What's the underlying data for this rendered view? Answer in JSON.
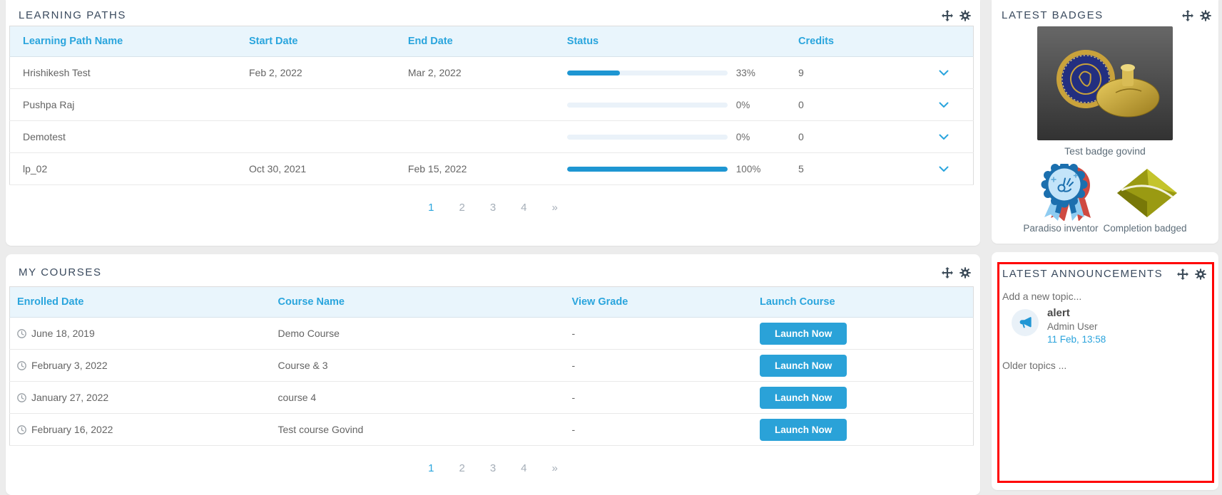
{
  "colors": {
    "accent_blue": "#2aa5dd",
    "progress_fill": "#1e96d2",
    "title_navy": "#3a4a5e",
    "alert_border_red": "#ff0000",
    "table_header_bg": "#e9f5fc",
    "page_bg": "#ececec"
  },
  "icons": {
    "panel_actions": [
      "move-icon",
      "gear-icon"
    ],
    "row_expand": "chevron-down-icon",
    "enrolled": "clock-icon",
    "announcement": "megaphone-icon"
  },
  "learning_paths": {
    "title": "LEARNING PATHS",
    "columns": [
      "Learning Path Name",
      "Start Date",
      "End Date",
      "Status",
      "Credits"
    ],
    "rows": [
      {
        "name": "Hrishikesh Test",
        "start": "Feb 2, 2022",
        "end": "Mar 2, 2022",
        "progress": 33,
        "progress_label": "33%",
        "credits": "9"
      },
      {
        "name": "Pushpa Raj",
        "start": "",
        "end": "",
        "progress": 0,
        "progress_label": "0%",
        "credits": "0"
      },
      {
        "name": "Demotest",
        "start": "",
        "end": "",
        "progress": 0,
        "progress_label": "0%",
        "credits": "0"
      },
      {
        "name": "lp_02",
        "start": "Oct 30, 2021",
        "end": "Feb 15, 2022",
        "progress": 100,
        "progress_label": "100%",
        "credits": "5"
      }
    ],
    "pagination": [
      "1",
      "2",
      "3",
      "4",
      "»"
    ]
  },
  "my_courses": {
    "title": "MY COURSES",
    "columns": [
      "Enrolled Date",
      "Course Name",
      "View Grade",
      "Launch Course"
    ],
    "launch_label": "Launch Now",
    "rows": [
      {
        "enrolled": "June 18, 2019",
        "course": "Demo Course",
        "grade": "-"
      },
      {
        "enrolled": "February 3, 2022",
        "course": "Course & 3",
        "grade": "-"
      },
      {
        "enrolled": "January 27, 2022",
        "course": "course 4",
        "grade": "-"
      },
      {
        "enrolled": "February 16, 2022",
        "course": "Test course Govind",
        "grade": "-"
      }
    ],
    "pagination": [
      "1",
      "2",
      "3",
      "4",
      "»"
    ]
  },
  "latest_badges": {
    "title": "LATEST BADGES",
    "badges": [
      {
        "label": "Test badge govind"
      },
      {
        "label": "Paradiso inventor"
      },
      {
        "label": "Completion badged"
      }
    ]
  },
  "announcements": {
    "title": "LATEST ANNOUNCEMENTS",
    "add_link": "Add a new topic...",
    "items": [
      {
        "title": "alert",
        "author": "Admin User",
        "date": "11 Feb, 13:58"
      }
    ],
    "older_link": "Older topics ..."
  }
}
